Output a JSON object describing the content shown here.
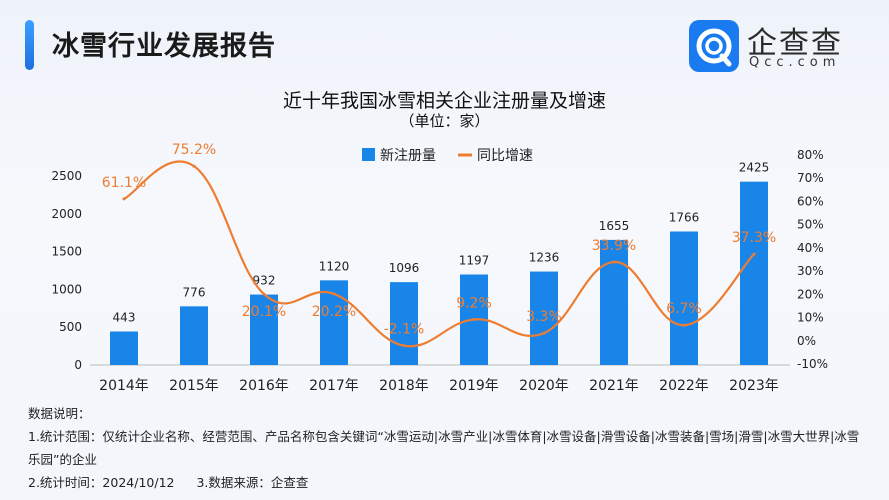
{
  "header": {
    "title": "冰雪行业发展报告",
    "logo_cn": "企查查",
    "logo_en": "Qcc.com"
  },
  "chart_data": {
    "type": "bar+line",
    "title": "近十年我国冰雪相关企业注册量及增速",
    "subtitle": "（单位：家）",
    "categories": [
      "2014年",
      "2015年",
      "2016年",
      "2017年",
      "2018年",
      "2019年",
      "2020年",
      "2021年",
      "2022年",
      "2023年"
    ],
    "series": [
      {
        "name": "新注册量",
        "type": "bar",
        "axis": "left",
        "color": "#1a85e8",
        "values": [
          443,
          776,
          932,
          1120,
          1096,
          1197,
          1236,
          1655,
          1766,
          2425
        ],
        "labels": [
          "443",
          "776",
          "932",
          "1120",
          "1096",
          "1197",
          "1236",
          "1655",
          "1766",
          "2425"
        ]
      },
      {
        "name": "同比增速",
        "type": "line",
        "axis": "right",
        "color": "#ee7d31",
        "values": [
          61.1,
          75.2,
          20.1,
          20.2,
          -2.1,
          9.2,
          3.3,
          33.9,
          6.7,
          37.3
        ],
        "labels": [
          "61.1%",
          "75.2%",
          "20.1%",
          "20.2%",
          "-2.1%",
          "9.2%",
          "3.3%",
          "33.9%",
          "6.7%",
          "37.3%"
        ]
      }
    ],
    "y_left": {
      "range": [
        0,
        2500
      ],
      "ticks": [
        "0",
        "500",
        "1000",
        "1500",
        "2000",
        "2500"
      ]
    },
    "y_right": {
      "range": [
        -10,
        80
      ],
      "ticks": [
        "-10%",
        "0%",
        "10%",
        "20%",
        "30%",
        "40%",
        "50%",
        "60%",
        "70%",
        "80%"
      ]
    },
    "legend": {
      "position": "top-center",
      "items": [
        "新注册量",
        "同比增速"
      ]
    },
    "grid": false
  },
  "notes": {
    "heading": "数据说明：",
    "line1": "1.统计范围：仅统计企业名称、经营范围、产品名称包含关键词“冰雪运动|冰雪产业|冰雪体育|冰雪设备|滑雪设备|冰雪装备|雪场|滑雪|冰雪大世界|冰雪乐园”的企业",
    "line2a": "2.统计时间：2024/10/12",
    "line2b": "3.数据来源：企查查"
  }
}
